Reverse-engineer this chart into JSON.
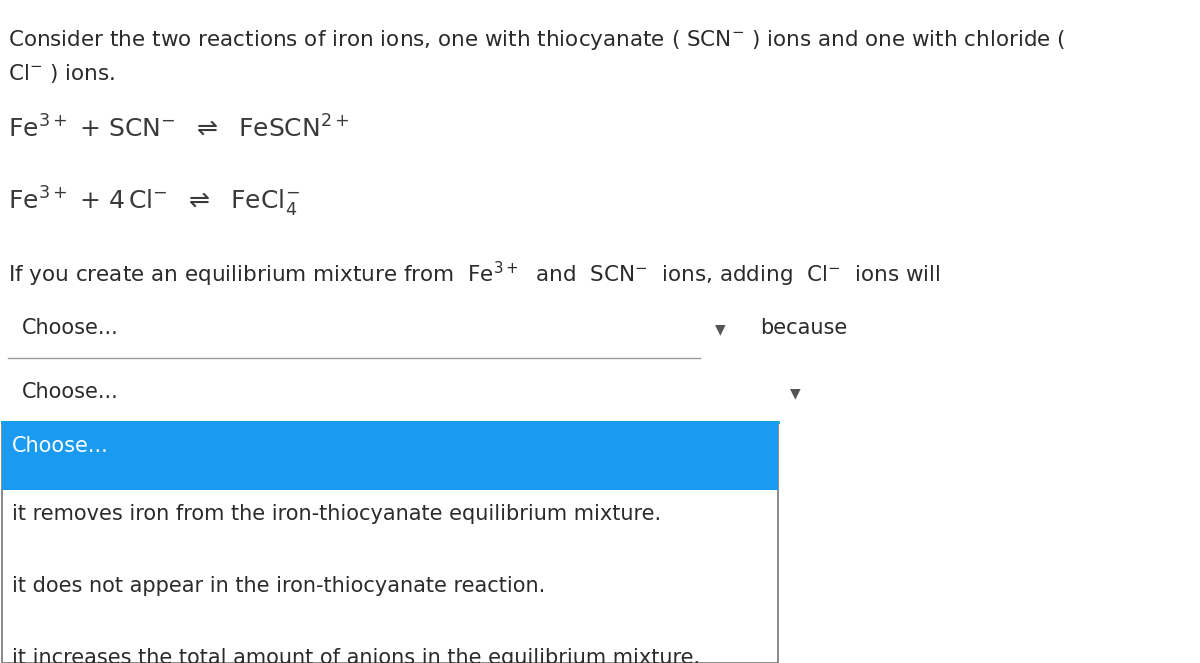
{
  "bg_color": "#ffffff",
  "text_color": "#2b2b2b",
  "chem_color": "#3a3a3a",
  "dropdown_blue": "#1a9af0",
  "dropdown_border": "#999999",
  "dropdown_box_border": "#777777",
  "dropdown_box_top_border": "#00aadd",
  "font_size_body": 15.5,
  "font_size_eq": 18,
  "font_size_dropdown": 15,
  "font_size_options": 15,
  "dropdown1_label": "Choose...",
  "because_label": "because",
  "dropdown2_label": "Choose...",
  "dropdown_options": [
    "Choose...",
    "it removes iron from the iron-thiocyanate equilibrium mixture.",
    "it does not appear in the iron-thiocyanate reaction.",
    "it increases the total amount of anions in the equilibrium mixture."
  ]
}
